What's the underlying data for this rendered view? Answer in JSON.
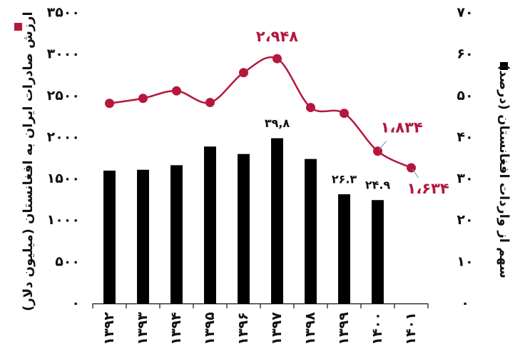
{
  "chart_data": {
    "type": "bar+line",
    "categories": [
      "۱۳۹۲",
      "۱۳۹۳",
      "۱۳۹۴",
      "۱۳۹۵",
      "۱۳۹۶",
      "۱۳۹۷",
      "۱۳۹۸",
      "۱۳۹۹",
      "۱۴۰۰",
      "۱۴۰۱"
    ],
    "series": [
      {
        "name": "ارزش صادرات ایران به افغانستان (میلیون دلار)",
        "type": "line",
        "axis": "left",
        "color": "#b5173c",
        "values": [
          2410,
          2470,
          2560,
          2420,
          2780,
          2948,
          2360,
          2290,
          1834,
          1634
        ]
      },
      {
        "name": "سهم از واردات افغانستان (درصد)",
        "type": "bar",
        "axis": "right",
        "color": "#000000",
        "values": [
          32,
          32.2,
          33.3,
          37.8,
          36,
          39.8,
          34.8,
          26.3,
          24.9,
          null
        ]
      }
    ],
    "y_left": {
      "label": "ارزش صادرات ایران به افغانستان (میلیون دلار)",
      "range": [
        0,
        3500
      ],
      "ticks": [
        "۰",
        "۵۰۰",
        "۱۰۰۰",
        "۱۵۰۰",
        "۲۰۰۰",
        "۲۵۰۰",
        "۳۰۰۰",
        "۳۵۰۰"
      ]
    },
    "y_right": {
      "label": "سهم از واردات افغانستان (درصد)",
      "range": [
        0,
        70
      ],
      "ticks": [
        "۰",
        "۱۰",
        "۲۰",
        "۳۰",
        "۴۰",
        "۵۰",
        "۶۰",
        "۷۰"
      ]
    },
    "line_labels": [
      {
        "index": 5,
        "text": "۲،۹۴۸"
      },
      {
        "index": 8,
        "text": "۱،۸۳۴"
      },
      {
        "index": 9,
        "text": "۱،۶۳۴"
      }
    ],
    "bar_labels": [
      {
        "index": 5,
        "text": "۳۹,۸"
      },
      {
        "index": 7,
        "text": "۲۶.۳"
      },
      {
        "index": 8,
        "text": "۲۴.۹"
      }
    ],
    "legend": {
      "left_marker": "■",
      "right_marker": "■"
    },
    "grid": false
  }
}
